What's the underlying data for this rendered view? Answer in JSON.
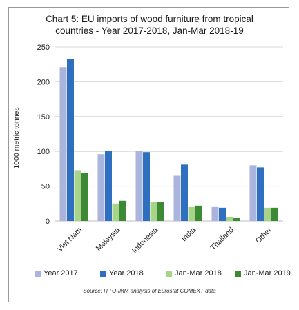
{
  "chart_data": {
    "type": "bar",
    "title_line1": "Chart 5: EU imports of wood furniture from tropical",
    "title_line2": "countries - Year 2017-2018, Jan-Mar 2018-19",
    "ylabel": "1000 metric tonnes",
    "xlabel": "",
    "ylim": [
      0,
      250
    ],
    "yticks": [
      0,
      50,
      100,
      150,
      200,
      250
    ],
    "grid": true,
    "legend_position": "bottom",
    "categories": [
      "Viet Nam",
      "Malaysia",
      "Indonesia",
      "India",
      "Thailand",
      "Other"
    ],
    "series": [
      {
        "name": "Year 2017",
        "color": "#aab4dc",
        "values": [
          221,
          96,
          101,
          65,
          20,
          80
        ]
      },
      {
        "name": "Year 2018",
        "color": "#2e6fc0",
        "values": [
          233,
          101,
          99,
          81,
          19,
          77
        ]
      },
      {
        "name": "Jan-Mar 2018",
        "color": "#a8d48a",
        "values": [
          73,
          25,
          27,
          20,
          5,
          19
        ]
      },
      {
        "name": "Jan-Mar 2019",
        "color": "#3d8a35",
        "values": [
          69,
          29,
          27,
          22,
          4,
          19
        ]
      }
    ],
    "source": "Source: ITTO-IMM analysis of Eurostat COMEXT data"
  }
}
